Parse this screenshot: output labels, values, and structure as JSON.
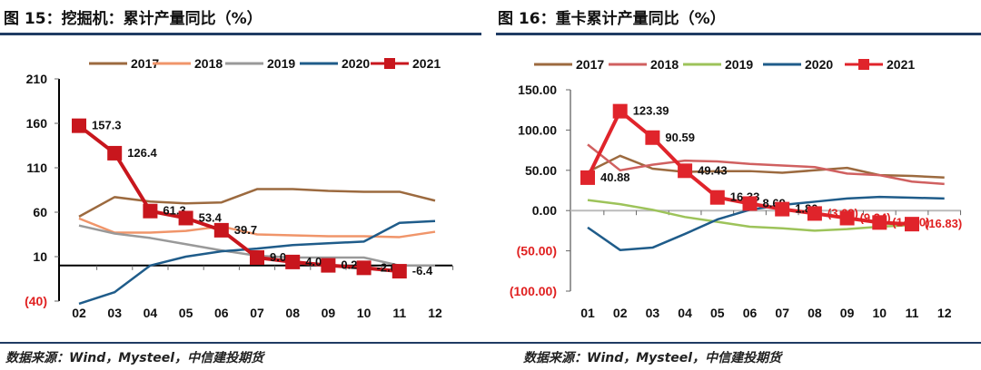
{
  "left": {
    "title": "图 15：挖掘机：累计产量同比（%）",
    "source": "数据来源：Wind，Mysteel，中信建投期货"
  },
  "right": {
    "title": "图 16：重卡累计产量同比（%）",
    "source": "数据来源：Wind，Mysteel，中信建投期货"
  },
  "chart_data": [
    {
      "type": "line",
      "title": "图 15：挖掘机：累计产量同比（%）",
      "ylim": [
        -40,
        210
      ],
      "yticks": [
        "210",
        "160",
        "110",
        "60",
        "10",
        "(40)"
      ],
      "ytick_values": [
        210,
        160,
        110,
        60,
        10,
        -40
      ],
      "categories": [
        "02",
        "03",
        "04",
        "05",
        "06",
        "07",
        "08",
        "09",
        "10",
        "11",
        "12"
      ],
      "legend": "top",
      "series": [
        {
          "name": "2017",
          "color": "#9c6a3f",
          "values": [
            55,
            77,
            72,
            70,
            71,
            86,
            86,
            84,
            83,
            83,
            73
          ]
        },
        {
          "name": "2018",
          "color": "#f0956a",
          "values": [
            53,
            37,
            37,
            39,
            44,
            35,
            34,
            33,
            33,
            32,
            38
          ]
        },
        {
          "name": "2019",
          "color": "#999999",
          "values": [
            45,
            36,
            31,
            24,
            17,
            11,
            9,
            9,
            9,
            0,
            0
          ]
        },
        {
          "name": "2020",
          "color": "#1f5c8a",
          "values": [
            -43,
            -30,
            0,
            10,
            16,
            19,
            23,
            25,
            27,
            48,
            50
          ]
        },
        {
          "name": "2021",
          "color": "#c8161d",
          "marker": "square",
          "values": [
            157.3,
            126.4,
            61.3,
            53.4,
            39.7,
            9.0,
            4.0,
            0.2,
            -2.6,
            -6.4,
            null
          ],
          "labels": [
            "157.3",
            "126.4",
            "61.3",
            "53.4",
            "39.7",
            "9.0",
            "4.0",
            "0.2",
            "-2.6",
            "-6.4",
            ""
          ]
        }
      ]
    },
    {
      "type": "line",
      "title": "图 16：重卡累计产量同比（%）",
      "ylim": [
        -100,
        150
      ],
      "yticks": [
        "150.00",
        "100.00",
        "50.00",
        "0.00",
        "(50.00)",
        "(100.00)"
      ],
      "ytick_values": [
        150,
        100,
        50,
        0,
        -50,
        -100
      ],
      "categories": [
        "01",
        "02",
        "03",
        "04",
        "05",
        "06",
        "07",
        "08",
        "09",
        "10",
        "11",
        "12"
      ],
      "legend": "top",
      "series": [
        {
          "name": "2017",
          "color": "#9c6a3f",
          "values": [
            48,
            68,
            52,
            48,
            49,
            49,
            47,
            50,
            53,
            44,
            43,
            41
          ]
        },
        {
          "name": "2018",
          "color": "#d06060",
          "values": [
            82,
            50,
            57,
            62,
            61,
            58,
            56,
            54,
            46,
            44,
            36,
            33
          ]
        },
        {
          "name": "2019",
          "color": "#9dc35a",
          "values": [
            13,
            8,
            1,
            -8,
            -14,
            -20,
            -22,
            -25,
            -23,
            -20,
            -18,
            null
          ]
        },
        {
          "name": "2020",
          "color": "#1f5c8a",
          "values": [
            -21,
            -49,
            -46,
            -29,
            -11,
            1,
            7,
            11,
            15,
            17,
            16,
            15
          ]
        },
        {
          "name": "2021",
          "color": "#e0242b",
          "marker": "square",
          "values": [
            40.88,
            123.39,
            90.59,
            49.43,
            16.33,
            8.69,
            1.8,
            -3.62,
            -9.34,
            -14.8,
            -16.83,
            null
          ],
          "labels": [
            "40.88",
            "123.39",
            "90.59",
            "49.43",
            "16.33",
            "8.69",
            "1.80",
            "(3.62)",
            "(9.34)",
            "(14.80)",
            "(16.83)",
            ""
          ]
        }
      ]
    }
  ]
}
